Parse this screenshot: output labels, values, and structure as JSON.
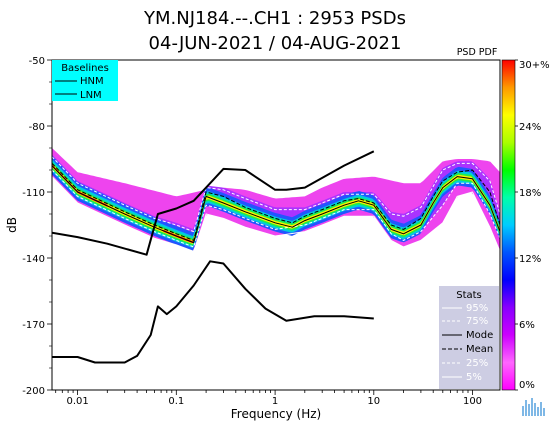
{
  "chart_data": {
    "type": "heatmap",
    "title_line1": "YM.NJ184.--.CH1 : 2953 PSDs",
    "title_line2": "04-JUN-2021 / 04-AUG-2021",
    "xlabel": "Frequency (Hz)",
    "ylabel": "dB",
    "x_scale": "log",
    "xlim": [
      0.0055,
      190
    ],
    "ylim": [
      -200,
      -50
    ],
    "x_ticks": [
      0.01,
      0.1,
      1,
      10,
      100
    ],
    "x_tick_labels": [
      "0.01",
      "0.1",
      "1",
      "10",
      "100"
    ],
    "y_ticks": [
      -50,
      -80,
      -110,
      -140,
      -170,
      -200
    ],
    "y_tick_labels": [
      "-50",
      "-80",
      "-110",
      "-140",
      "-170",
      "-200"
    ],
    "colorbar": {
      "label": "PSD PDF",
      "range": [
        0,
        30
      ],
      "ticks": [
        0,
        6,
        12,
        18,
        24,
        30
      ],
      "tick_labels": [
        "0%",
        "6%",
        "12%",
        "18%",
        "24%",
        "30+%"
      ],
      "colors": [
        "#ff00ff",
        "#ff66ff",
        "#cc00ff",
        "#8800ff",
        "#0000ff",
        "#0055ff",
        "#00ccff",
        "#00ffaa",
        "#00ff00",
        "#aaff00",
        "#ffff00",
        "#ff9900",
        "#ff0000"
      ]
    },
    "baselines_legend": {
      "title": "Baselines",
      "entries": [
        "HNM",
        "LNM"
      ],
      "background": "#00ffff"
    },
    "stats_legend": {
      "title": "Stats",
      "entries": [
        "95%",
        "75%",
        "Mode",
        "Mean",
        "25%",
        "5%"
      ]
    },
    "series": [
      {
        "name": "HNM",
        "x": [
          0.0055,
          0.01,
          0.02,
          0.05,
          0.065,
          0.1,
          0.15,
          0.2,
          0.3,
          0.5,
          1,
          1.3,
          2,
          5,
          10
        ],
        "y": [
          -128.5,
          -130.5,
          -133.5,
          -138.5,
          -120,
          -117.5,
          -114,
          -108,
          -99.5,
          -100,
          -109,
          -109,
          -108,
          -98,
          -91.5
        ]
      },
      {
        "name": "LNM",
        "x": [
          0.0055,
          0.01,
          0.015,
          0.03,
          0.04,
          0.055,
          0.065,
          0.08,
          0.1,
          0.15,
          0.22,
          0.3,
          0.5,
          0.8,
          1.3,
          2.5,
          5,
          10
        ],
        "y": [
          -185,
          -185,
          -187.5,
          -187.5,
          -184.5,
          -175,
          -162,
          -165.5,
          -162,
          -152.5,
          -141.5,
          -142.5,
          -154,
          -163,
          -168.5,
          -166.5,
          -166.5,
          -167.5
        ]
      },
      {
        "name": "Mode",
        "x": [
          0.0055,
          0.01,
          0.03,
          0.06,
          0.1,
          0.15,
          0.2,
          0.3,
          0.5,
          1,
          1.5,
          2,
          3,
          5,
          7,
          10,
          15,
          20,
          30,
          40,
          50,
          70,
          100,
          150,
          190
        ],
        "y": [
          -98,
          -110,
          -120,
          -126,
          -130,
          -133,
          -112,
          -115,
          -119,
          -124,
          -126,
          -123,
          -120,
          -116,
          -114,
          -116,
          -127,
          -129,
          -125,
          -115,
          -108,
          -103,
          -104,
          -116,
          -128
        ]
      },
      {
        "name": "Mean",
        "x": [
          0.0055,
          0.01,
          0.03,
          0.06,
          0.1,
          0.15,
          0.2,
          0.3,
          0.5,
          1,
          1.5,
          2,
          3,
          5,
          7,
          10,
          15,
          20,
          30,
          40,
          50,
          70,
          100,
          150,
          190
        ],
        "y": [
          -97,
          -109,
          -119,
          -125,
          -129,
          -132,
          -110,
          -112,
          -117,
          -122,
          -124,
          -121,
          -118,
          -114,
          -113,
          -115,
          -125,
          -127,
          -122,
          -112,
          -105,
          -101,
          -100,
          -110,
          -125
        ]
      },
      {
        "name": "95%",
        "x": [
          0.0055,
          0.01,
          0.03,
          0.1,
          0.2,
          0.3,
          0.5,
          1,
          2,
          3,
          5,
          10,
          20,
          30,
          50,
          70,
          100,
          150,
          190
        ],
        "y": [
          -88,
          -99,
          -104,
          -110,
          -107,
          -106,
          -107,
          -111,
          -110,
          -106,
          -102,
          -101,
          -104,
          -104,
          -94,
          -93,
          -93,
          -94,
          -99
        ]
      },
      {
        "name": "75%",
        "x": [
          0.0055,
          0.01,
          0.03,
          0.06,
          0.1,
          0.15,
          0.2,
          0.3,
          0.5,
          1,
          2,
          3,
          5,
          10,
          15,
          20,
          30,
          50,
          70,
          100,
          150,
          190
        ],
        "y": [
          -94,
          -106,
          -116,
          -122,
          -125,
          -128,
          -108,
          -109,
          -113,
          -118,
          -118,
          -115,
          -111,
          -111,
          -120,
          -121,
          -117,
          -100,
          -97,
          -97,
          -105,
          -120
        ]
      },
      {
        "name": "25%",
        "x": [
          0.0055,
          0.01,
          0.03,
          0.06,
          0.1,
          0.15,
          0.2,
          0.3,
          0.5,
          1,
          2,
          3,
          5,
          10,
          15,
          20,
          30,
          50,
          70,
          100,
          150,
          190
        ],
        "y": [
          -100,
          -112,
          -122,
          -128,
          -132,
          -135,
          -116,
          -118,
          -122,
          -127,
          -125,
          -122,
          -118,
          -118,
          -129,
          -132,
          -128,
          -116,
          -106,
          -106,
          -120,
          -131
        ]
      },
      {
        "name": "5%",
        "x": [
          0.0055,
          0.01,
          0.03,
          0.06,
          0.1,
          0.15,
          0.2,
          0.3,
          0.5,
          1,
          2,
          3,
          5,
          10,
          15,
          20,
          30,
          50,
          70,
          100,
          150,
          190
        ],
        "y": [
          -103,
          -115,
          -125,
          -131,
          -134,
          -137,
          -120,
          -122,
          -126,
          -130,
          -128,
          -125,
          -121,
          -121,
          -132,
          -135,
          -132,
          -124,
          -112,
          -110,
          -126,
          -137
        ]
      }
    ]
  }
}
